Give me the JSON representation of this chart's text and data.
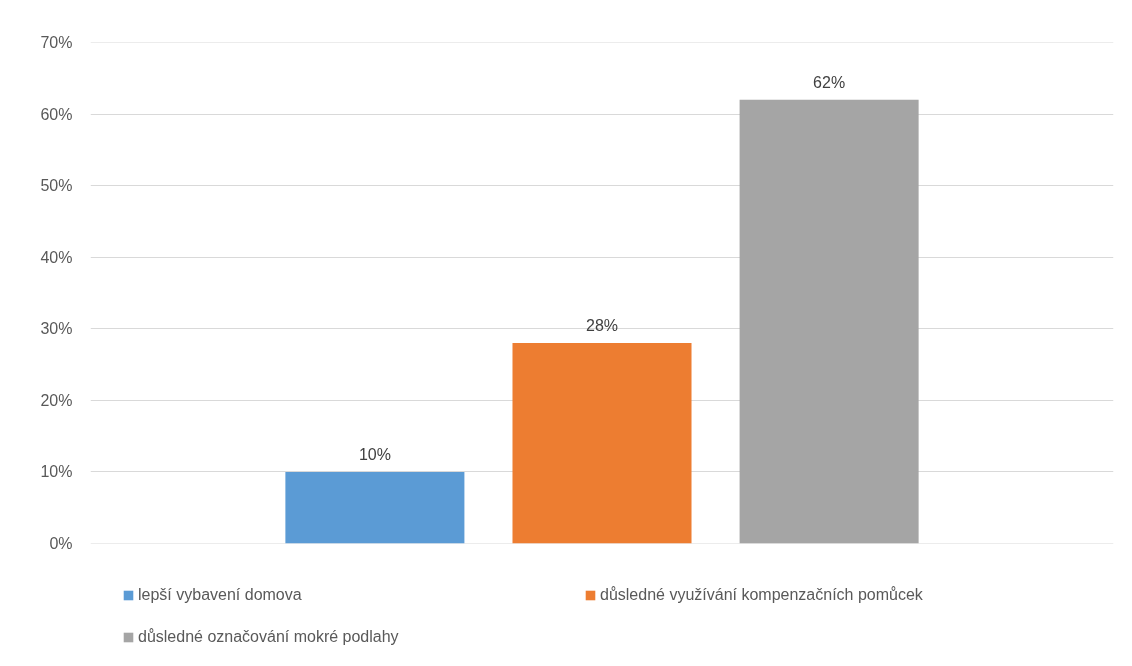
{
  "chart_data": {
    "type": "bar",
    "categories": [
      null
    ],
    "series": [
      {
        "name": "lepší vybavení domova",
        "color": "#5b9bd5",
        "values": [
          10
        ],
        "value_labels": [
          "10%"
        ]
      },
      {
        "name": "důsledné využívání kompenzačních pomůcek",
        "color": "#ed7d31",
        "values": [
          28
        ],
        "value_labels": [
          "28%"
        ]
      },
      {
        "name": "důsledné označování mokré podlahy",
        "color": "#a5a5a5",
        "values": [
          62
        ],
        "value_labels": [
          "62%"
        ]
      }
    ],
    "ylim": [
      0,
      70
    ],
    "yticks": [
      {
        "value": 0,
        "label": "0%"
      },
      {
        "value": 10,
        "label": "10%"
      },
      {
        "value": 20,
        "label": "20%"
      },
      {
        "value": 30,
        "label": "30%"
      },
      {
        "value": 40,
        "label": "40%"
      },
      {
        "value": 50,
        "label": "50%"
      },
      {
        "value": 60,
        "label": "60%"
      },
      {
        "value": 70,
        "label": "70%"
      }
    ],
    "grid": "y",
    "legend": "bottom",
    "tick_labels": "y"
  }
}
